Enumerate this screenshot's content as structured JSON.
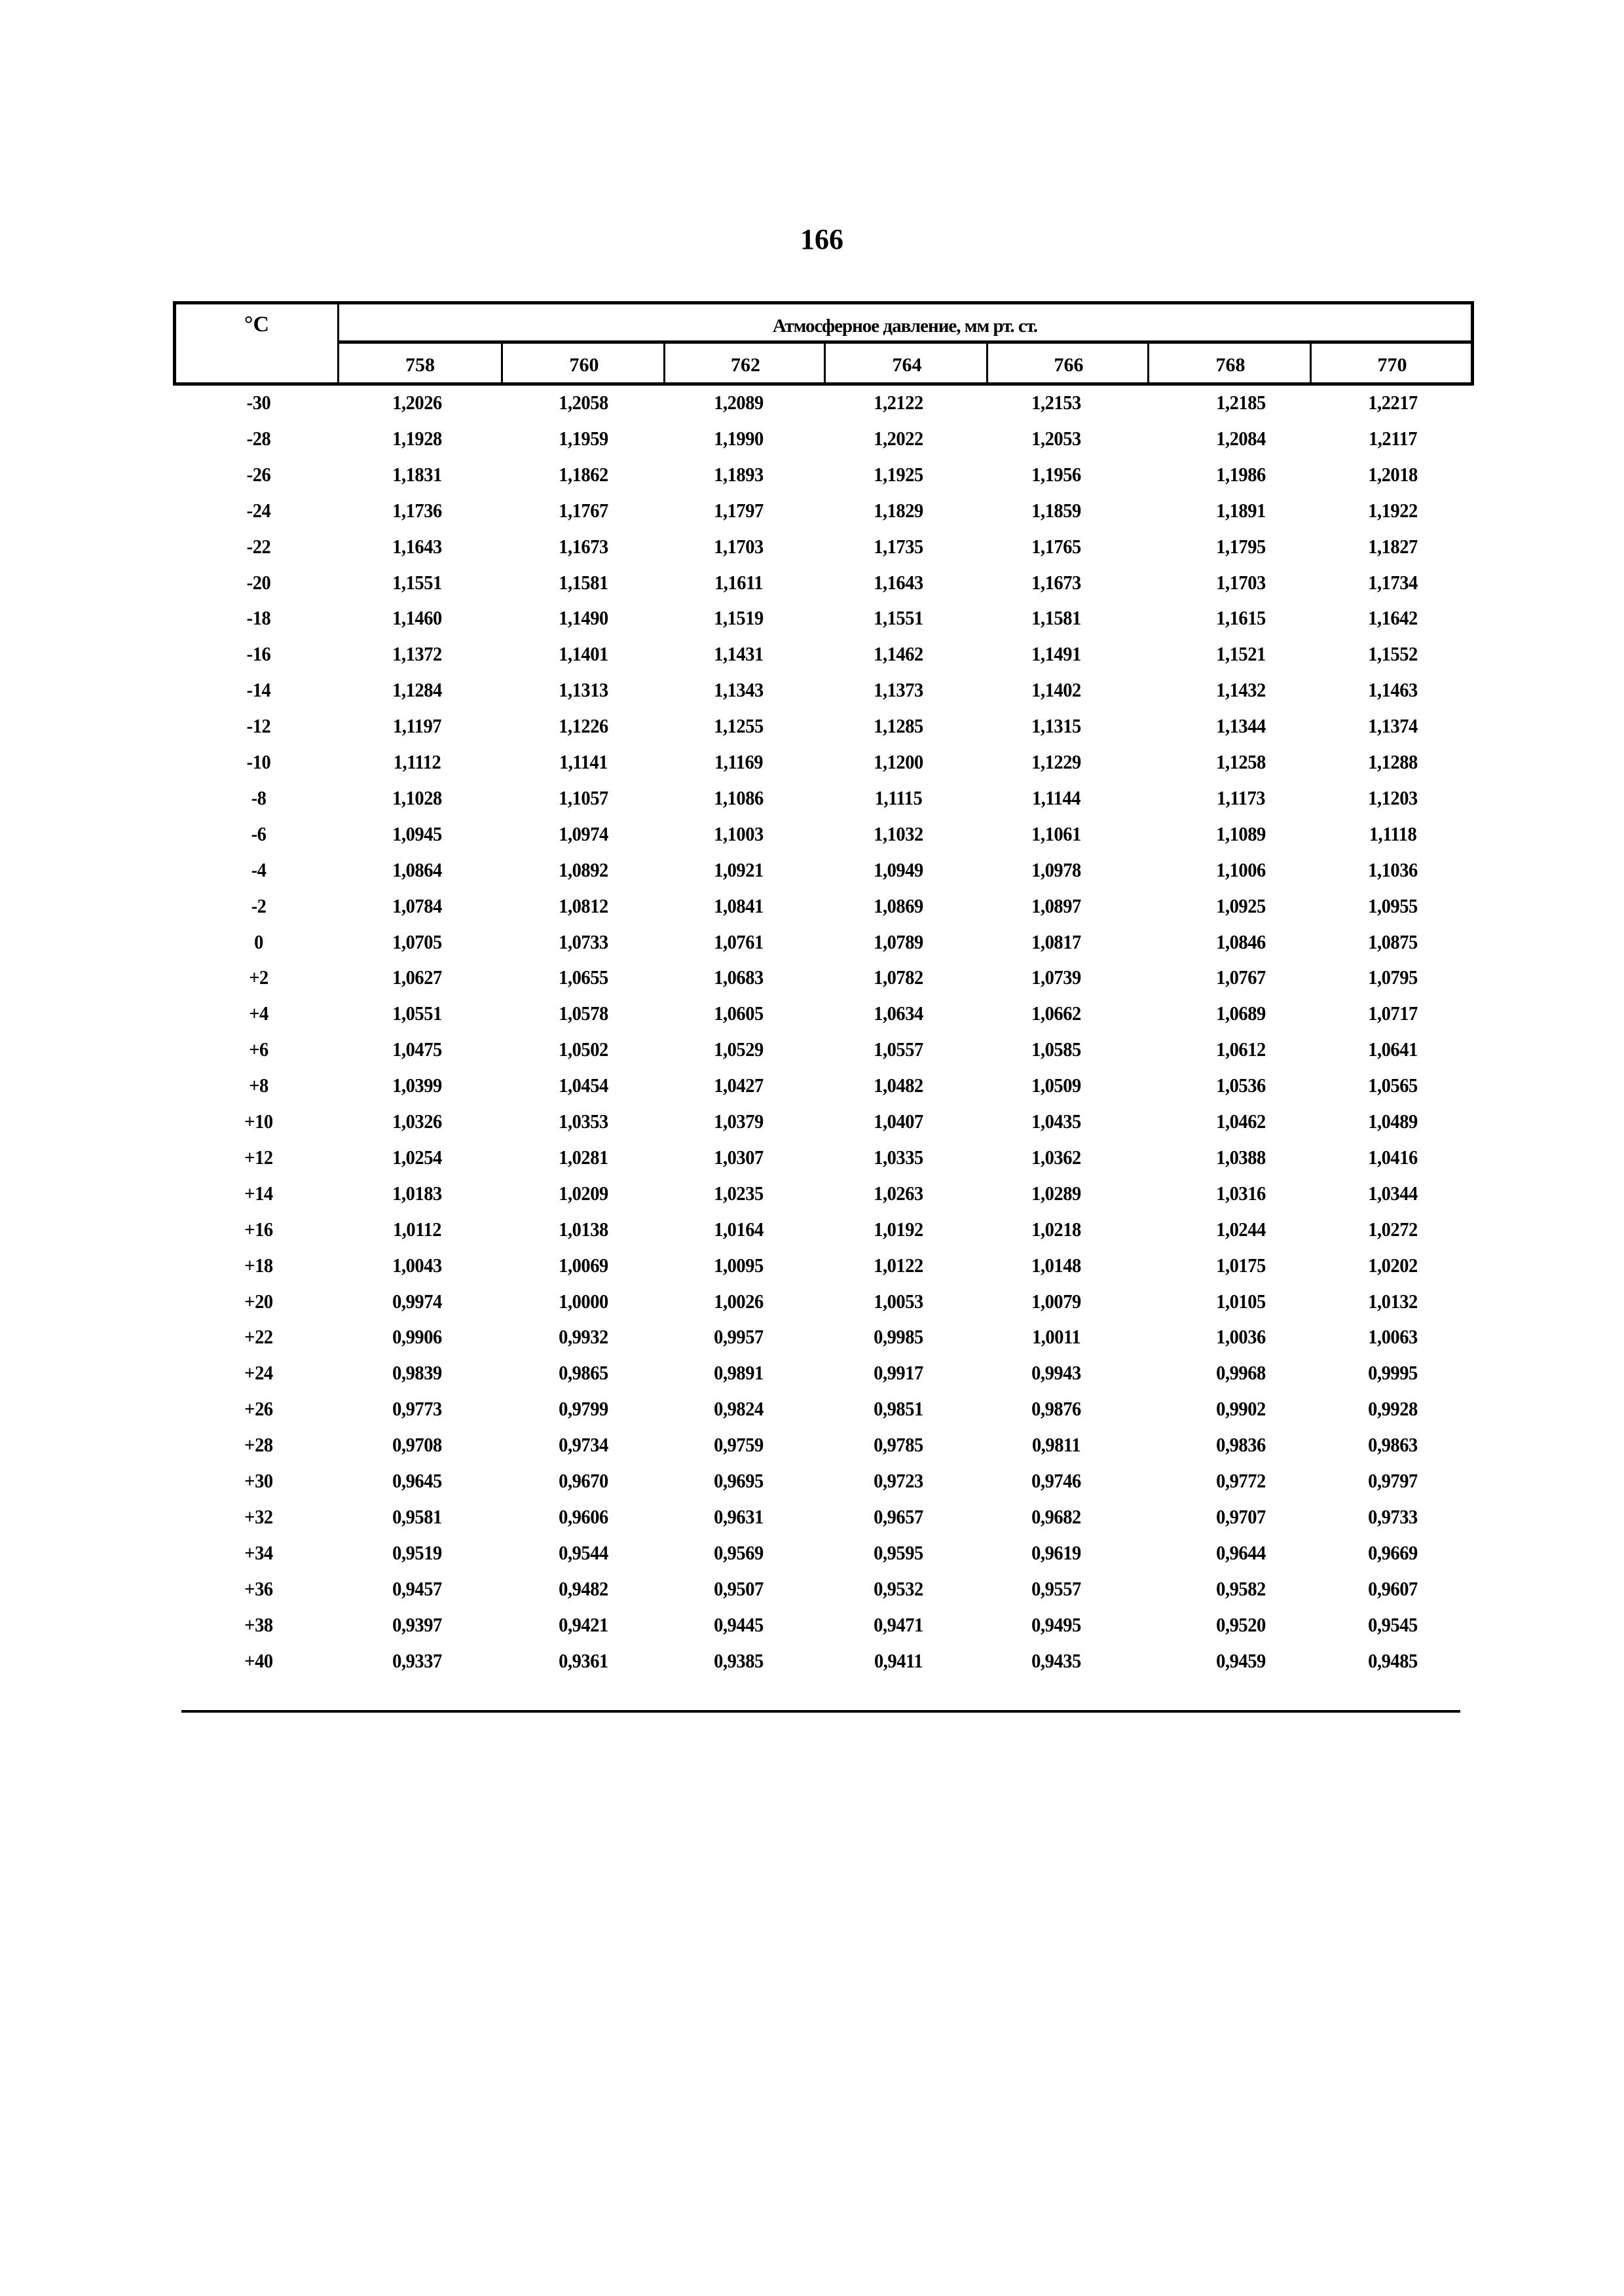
{
  "page_number": "166",
  "table": {
    "temp_header": "°C",
    "group_header": "Атмосферное давление, мм рт. ст.",
    "pressure_columns": [
      "758",
      "760",
      "762",
      "764",
      "766",
      "768",
      "770"
    ],
    "rows": [
      {
        "t": "-30",
        "v": [
          "1,2026",
          "1,2058",
          "1,2089",
          "1,2122",
          "1,2153",
          "1,2185",
          "1,2217"
        ]
      },
      {
        "t": "-28",
        "v": [
          "1,1928",
          "1,1959",
          "1,1990",
          "1,2022",
          "1,2053",
          "1,2084",
          "1,2117"
        ]
      },
      {
        "t": "-26",
        "v": [
          "1,1831",
          "1,1862",
          "1,1893",
          "1,1925",
          "1,1956",
          "1,1986",
          "1,2018"
        ]
      },
      {
        "t": "-24",
        "v": [
          "1,1736",
          "1,1767",
          "1,1797",
          "1,1829",
          "1,1859",
          "1,1891",
          "1,1922"
        ]
      },
      {
        "t": "-22",
        "v": [
          "1,1643",
          "1,1673",
          "1,1703",
          "1,1735",
          "1,1765",
          "1,1795",
          "1,1827"
        ]
      },
      {
        "t": "-20",
        "v": [
          "1,1551",
          "1,1581",
          "1,1611",
          "1,1643",
          "1,1673",
          "1,1703",
          "1,1734"
        ]
      },
      {
        "t": "-18",
        "v": [
          "1,1460",
          "1,1490",
          "1,1519",
          "1,1551",
          "1,1581",
          "1,1615",
          "1,1642"
        ]
      },
      {
        "t": "-16",
        "v": [
          "1,1372",
          "1,1401",
          "1,1431",
          "1,1462",
          "1,1491",
          "1,1521",
          "1,1552"
        ]
      },
      {
        "t": "-14",
        "v": [
          "1,1284",
          "1,1313",
          "1,1343",
          "1,1373",
          "1,1402",
          "1,1432",
          "1,1463"
        ]
      },
      {
        "t": "-12",
        "v": [
          "1,1197",
          "1,1226",
          "1,1255",
          "1,1285",
          "1,1315",
          "1,1344",
          "1,1374"
        ]
      },
      {
        "t": "-10",
        "v": [
          "1,1112",
          "1,1141",
          "1,1169",
          "1,1200",
          "1,1229",
          "1,1258",
          "1,1288"
        ]
      },
      {
        "t": "-8",
        "v": [
          "1,1028",
          "1,1057",
          "1,1086",
          "1,1115",
          "1,1144",
          "1,1173",
          "1,1203"
        ]
      },
      {
        "t": "-6",
        "v": [
          "1,0945",
          "1,0974",
          "1,1003",
          "1,1032",
          "1,1061",
          "1,1089",
          "1,1118"
        ]
      },
      {
        "t": "-4",
        "v": [
          "1,0864",
          "1,0892",
          "1,0921",
          "1,0949",
          "1,0978",
          "1,1006",
          "1,1036"
        ]
      },
      {
        "t": "-2",
        "v": [
          "1,0784",
          "1,0812",
          "1,0841",
          "1,0869",
          "1,0897",
          "1,0925",
          "1,0955"
        ]
      },
      {
        "t": "0",
        "v": [
          "1,0705",
          "1,0733",
          "1,0761",
          "1,0789",
          "1,0817",
          "1,0846",
          "1,0875"
        ]
      },
      {
        "t": "+2",
        "v": [
          "1,0627",
          "1,0655",
          "1,0683",
          "1,0782",
          "1,0739",
          "1,0767",
          "1,0795"
        ]
      },
      {
        "t": "+4",
        "v": [
          "1,0551",
          "1,0578",
          "1,0605",
          "1,0634",
          "1,0662",
          "1,0689",
          "1,0717"
        ]
      },
      {
        "t": "+6",
        "v": [
          "1,0475",
          "1,0502",
          "1,0529",
          "1,0557",
          "1,0585",
          "1,0612",
          "1,0641"
        ]
      },
      {
        "t": "+8",
        "v": [
          "1,0399",
          "1,0454",
          "1,0427",
          "1,0482",
          "1,0509",
          "1,0536",
          "1,0565"
        ]
      },
      {
        "t": "+10",
        "v": [
          "1,0326",
          "1,0353",
          "1,0379",
          "1,0407",
          "1,0435",
          "1,0462",
          "1,0489"
        ]
      },
      {
        "t": "+12",
        "v": [
          "1,0254",
          "1,0281",
          "1,0307",
          "1,0335",
          "1,0362",
          "1,0388",
          "1,0416"
        ]
      },
      {
        "t": "+14",
        "v": [
          "1,0183",
          "1,0209",
          "1,0235",
          "1,0263",
          "1,0289",
          "1,0316",
          "1,0344"
        ]
      },
      {
        "t": "+16",
        "v": [
          "1,0112",
          "1,0138",
          "1,0164",
          "1,0192",
          "1,0218",
          "1,0244",
          "1,0272"
        ]
      },
      {
        "t": "+18",
        "v": [
          "1,0043",
          "1,0069",
          "1,0095",
          "1,0122",
          "1,0148",
          "1,0175",
          "1,0202"
        ]
      },
      {
        "t": "+20",
        "v": [
          "0,9974",
          "1,0000",
          "1,0026",
          "1,0053",
          "1,0079",
          "1,0105",
          "1,0132"
        ]
      },
      {
        "t": "+22",
        "v": [
          "0,9906",
          "0,9932",
          "0,9957",
          "0,9985",
          "1,0011",
          "1,0036",
          "1,0063"
        ]
      },
      {
        "t": "+24",
        "v": [
          "0,9839",
          "0,9865",
          "0,9891",
          "0,9917",
          "0,9943",
          "0,9968",
          "0,9995"
        ]
      },
      {
        "t": "+26",
        "v": [
          "0,9773",
          "0,9799",
          "0,9824",
          "0,9851",
          "0,9876",
          "0,9902",
          "0,9928"
        ]
      },
      {
        "t": "+28",
        "v": [
          "0,9708",
          "0,9734",
          "0,9759",
          "0,9785",
          "0,9811",
          "0,9836",
          "0,9863"
        ]
      },
      {
        "t": "+30",
        "v": [
          "0,9645",
          "0,9670",
          "0,9695",
          "0,9723",
          "0,9746",
          "0,9772",
          "0,9797"
        ]
      },
      {
        "t": "+32",
        "v": [
          "0,9581",
          "0,9606",
          "0,9631",
          "0,9657",
          "0,9682",
          "0,9707",
          "0,9733"
        ]
      },
      {
        "t": "+34",
        "v": [
          "0,9519",
          "0,9544",
          "0,9569",
          "0,9595",
          "0,9619",
          "0,9644",
          "0,9669"
        ]
      },
      {
        "t": "+36",
        "v": [
          "0,9457",
          "0,9482",
          "0,9507",
          "0,9532",
          "0,9557",
          "0,9582",
          "0,9607"
        ]
      },
      {
        "t": "+38",
        "v": [
          "0,9397",
          "0,9421",
          "0,9445",
          "0,9471",
          "0,9495",
          "0,9520",
          "0,9545"
        ]
      },
      {
        "t": "+40",
        "v": [
          "0,9337",
          "0,9361",
          "0,9385",
          "0,9411",
          "0,9435",
          "0,9459",
          "0,9485"
        ]
      }
    ]
  }
}
